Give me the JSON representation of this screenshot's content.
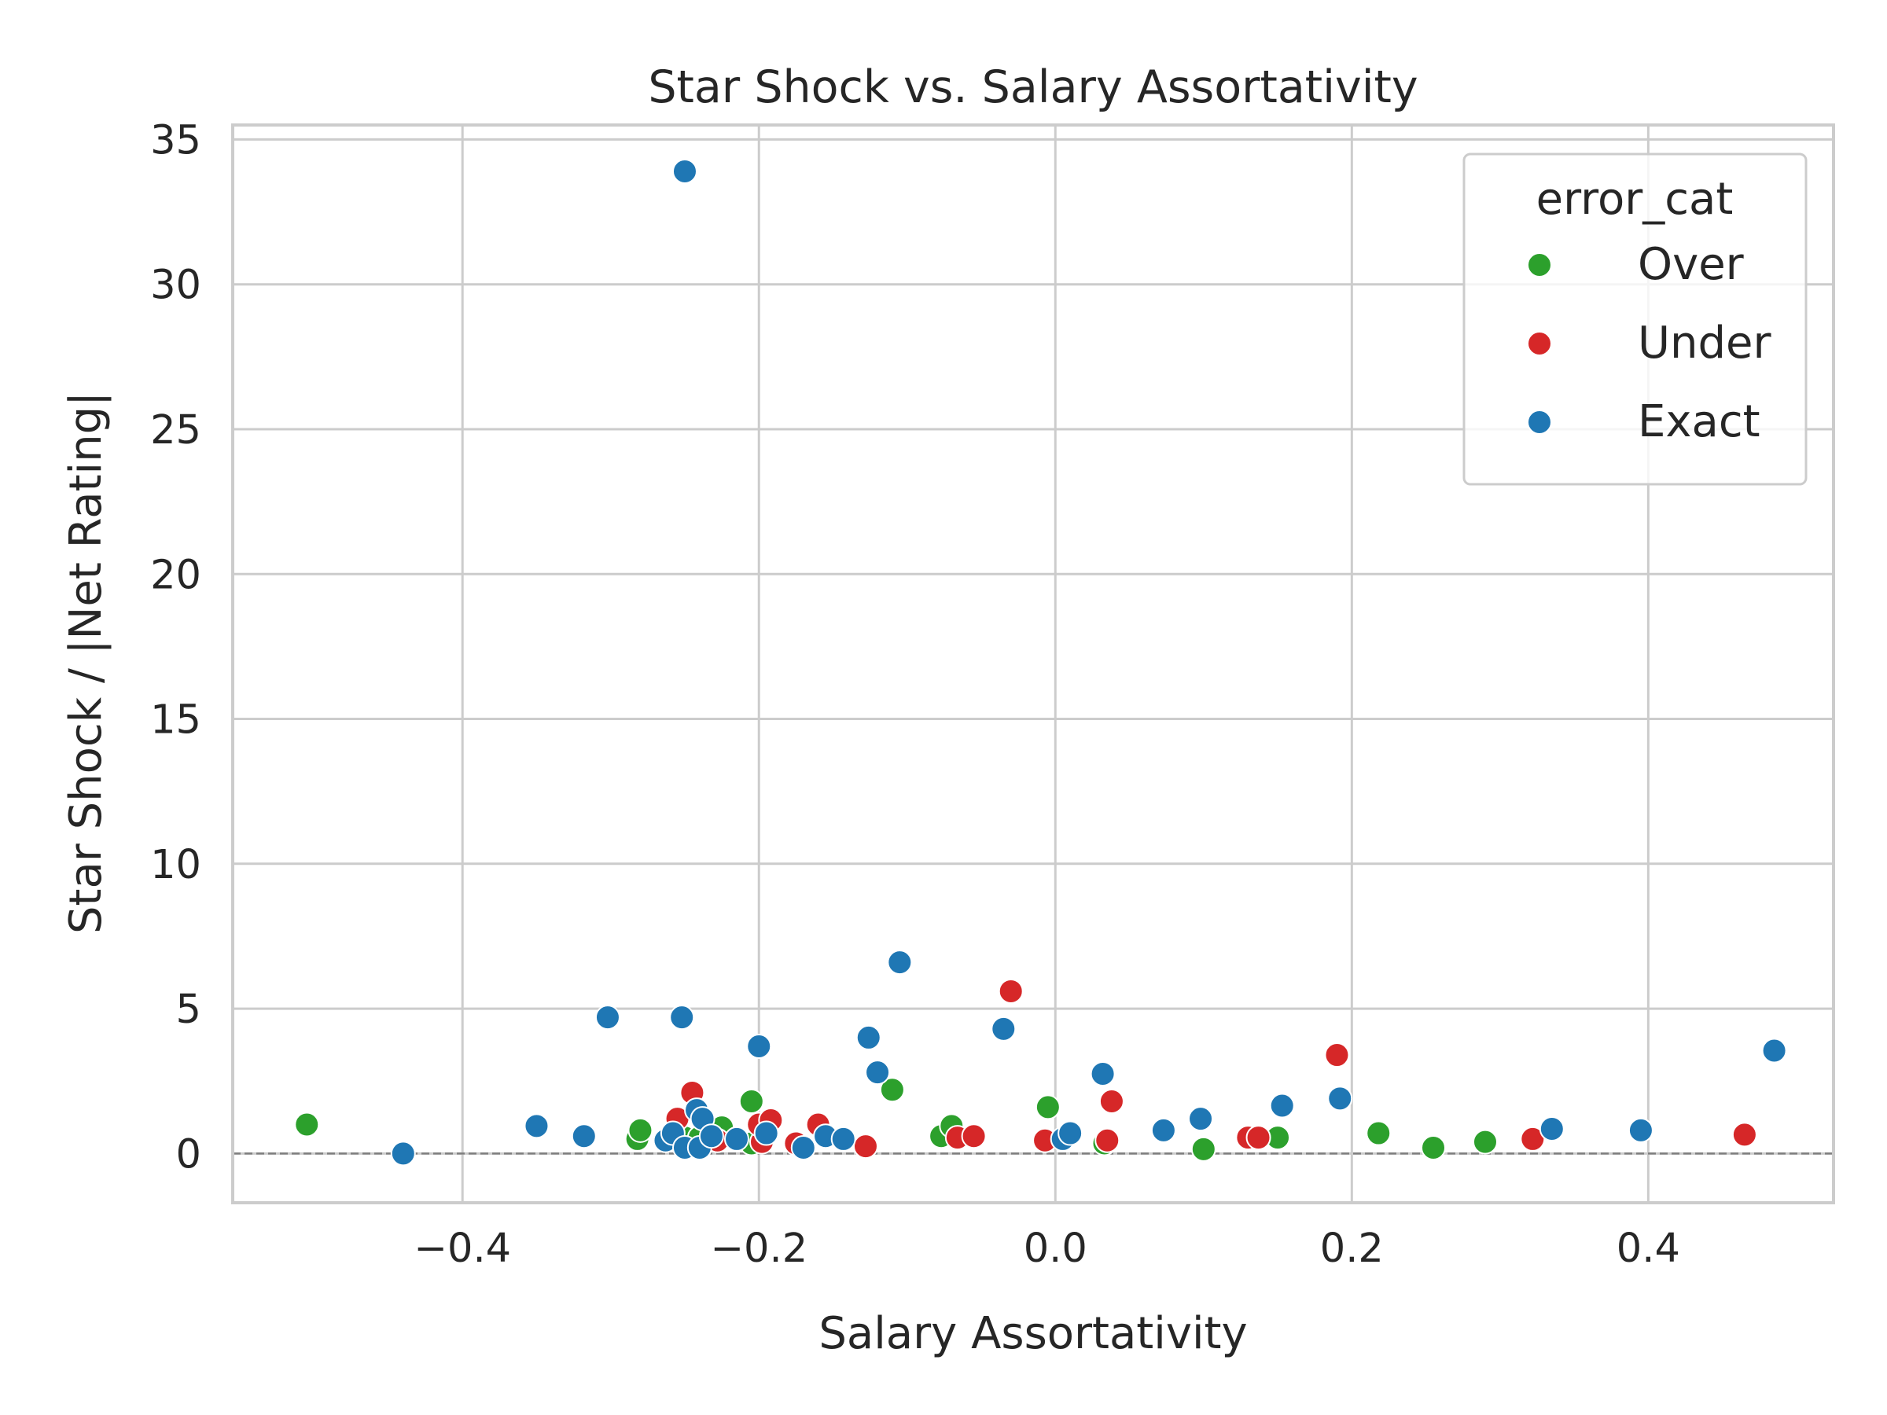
{
  "chart_data": {
    "type": "scatter",
    "title": "Star Shock vs. Salary Assortativity",
    "xlabel": "Salary Assortativity",
    "ylabel": "Star Shock / |Net Rating|",
    "xlim": [
      -0.555,
      0.525
    ],
    "ylim": [
      -1.7,
      35.5
    ],
    "xticks": [
      -0.4,
      -0.2,
      0.0,
      0.2,
      0.4
    ],
    "xtick_labels": [
      "−0.4",
      "−0.2",
      "0.0",
      "0.2",
      "0.4"
    ],
    "yticks": [
      0,
      5,
      10,
      15,
      20,
      25,
      30,
      35
    ],
    "ytick_labels": [
      "0",
      "5",
      "10",
      "15",
      "20",
      "25",
      "30",
      "35"
    ],
    "grid": true,
    "reference_line": {
      "y": 0,
      "style": "dashed",
      "color": "#7f7f7f"
    },
    "legend": {
      "title": "error_cat",
      "position": "top-right",
      "entries": [
        {
          "label": "Over",
          "color": "#2ca02c"
        },
        {
          "label": "Under",
          "color": "#d62728"
        },
        {
          "label": "Exact",
          "color": "#1f77b4"
        }
      ]
    },
    "series": [
      {
        "name": "Over",
        "color": "#2ca02c",
        "points": [
          {
            "x": -0.505,
            "y": 1.0
          },
          {
            "x": -0.282,
            "y": 0.5
          },
          {
            "x": -0.28,
            "y": 0.8
          },
          {
            "x": -0.255,
            "y": 0.7
          },
          {
            "x": -0.25,
            "y": 0.55
          },
          {
            "x": -0.24,
            "y": 0.55
          },
          {
            "x": -0.225,
            "y": 0.9
          },
          {
            "x": -0.205,
            "y": 0.35
          },
          {
            "x": -0.205,
            "y": 1.8
          },
          {
            "x": -0.11,
            "y": 2.2
          },
          {
            "x": -0.077,
            "y": 0.6
          },
          {
            "x": -0.07,
            "y": 0.95
          },
          {
            "x": -0.005,
            "y": 1.6
          },
          {
            "x": 0.033,
            "y": 0.35
          },
          {
            "x": 0.1,
            "y": 0.15
          },
          {
            "x": 0.15,
            "y": 0.55
          },
          {
            "x": 0.218,
            "y": 0.7
          },
          {
            "x": 0.255,
            "y": 0.2
          },
          {
            "x": 0.29,
            "y": 0.4
          }
        ]
      },
      {
        "name": "Under",
        "color": "#d62728",
        "points": [
          {
            "x": -0.255,
            "y": 1.2
          },
          {
            "x": -0.245,
            "y": 2.1
          },
          {
            "x": -0.228,
            "y": 0.45
          },
          {
            "x": -0.198,
            "y": 0.4
          },
          {
            "x": -0.2,
            "y": 1.0
          },
          {
            "x": -0.192,
            "y": 1.15
          },
          {
            "x": -0.175,
            "y": 0.35
          },
          {
            "x": -0.16,
            "y": 1.0
          },
          {
            "x": -0.128,
            "y": 0.25
          },
          {
            "x": -0.066,
            "y": 0.55
          },
          {
            "x": -0.055,
            "y": 0.6
          },
          {
            "x": -0.03,
            "y": 5.6
          },
          {
            "x": -0.007,
            "y": 0.45
          },
          {
            "x": 0.035,
            "y": 0.45
          },
          {
            "x": 0.038,
            "y": 1.8
          },
          {
            "x": 0.13,
            "y": 0.55
          },
          {
            "x": 0.137,
            "y": 0.55
          },
          {
            "x": 0.19,
            "y": 3.4
          },
          {
            "x": 0.322,
            "y": 0.5
          },
          {
            "x": 0.465,
            "y": 0.65
          }
        ]
      },
      {
        "name": "Exact",
        "color": "#1f77b4",
        "points": [
          {
            "x": -0.25,
            "y": 33.9
          },
          {
            "x": -0.44,
            "y": 0.0
          },
          {
            "x": -0.35,
            "y": 0.95
          },
          {
            "x": -0.318,
            "y": 0.6
          },
          {
            "x": -0.302,
            "y": 4.7
          },
          {
            "x": -0.263,
            "y": 0.45
          },
          {
            "x": -0.258,
            "y": 0.7
          },
          {
            "x": -0.252,
            "y": 4.7
          },
          {
            "x": -0.25,
            "y": 0.2
          },
          {
            "x": -0.242,
            "y": 1.5
          },
          {
            "x": -0.24,
            "y": 0.2
          },
          {
            "x": -0.238,
            "y": 1.2
          },
          {
            "x": -0.232,
            "y": 0.6
          },
          {
            "x": -0.215,
            "y": 0.5
          },
          {
            "x": -0.195,
            "y": 0.7
          },
          {
            "x": -0.2,
            "y": 3.7
          },
          {
            "x": -0.17,
            "y": 0.2
          },
          {
            "x": -0.155,
            "y": 0.6
          },
          {
            "x": -0.143,
            "y": 0.5
          },
          {
            "x": -0.126,
            "y": 4.0
          },
          {
            "x": -0.12,
            "y": 2.8
          },
          {
            "x": -0.105,
            "y": 6.6
          },
          {
            "x": -0.035,
            "y": 4.3
          },
          {
            "x": 0.005,
            "y": 0.5
          },
          {
            "x": 0.01,
            "y": 0.7
          },
          {
            "x": 0.032,
            "y": 2.75
          },
          {
            "x": 0.073,
            "y": 0.8
          },
          {
            "x": 0.098,
            "y": 1.2
          },
          {
            "x": 0.153,
            "y": 1.65
          },
          {
            "x": 0.192,
            "y": 1.9
          },
          {
            "x": 0.335,
            "y": 0.85
          },
          {
            "x": 0.395,
            "y": 0.8
          },
          {
            "x": 0.485,
            "y": 3.55
          }
        ]
      }
    ]
  }
}
